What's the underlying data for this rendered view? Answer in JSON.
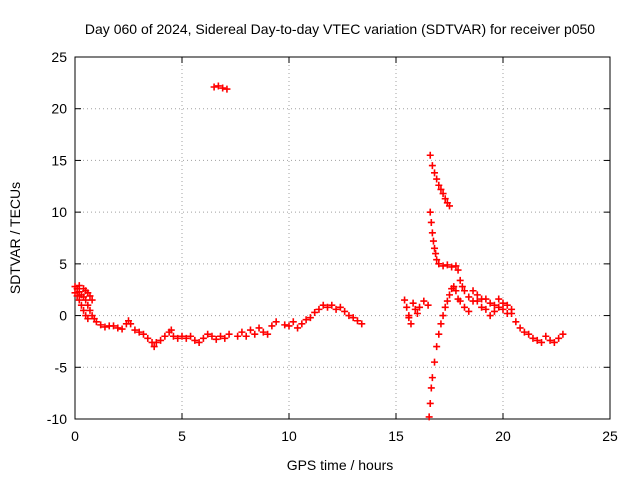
{
  "chart_data": {
    "type": "scatter",
    "title": "Day 060 of 2024, Sidereal Day-to-day VTEC variation (SDTVAR) for receiver p050",
    "xlabel": "GPS time / hours",
    "ylabel": "SDTVAR / TECUs",
    "xlim": [
      0,
      25
    ],
    "ylim": [
      -10,
      25
    ],
    "xticks": [
      0,
      5,
      10,
      15,
      20,
      25
    ],
    "yticks": [
      -10,
      -5,
      0,
      5,
      10,
      15,
      20,
      25
    ],
    "xtick_labels": [
      "0",
      "5",
      "10",
      "15",
      "20",
      "25"
    ],
    "ytick_labels": [
      "-10",
      "-5",
      "0",
      "5",
      "10",
      "15",
      "20",
      "25"
    ],
    "grid": true,
    "marker": "+",
    "color": "#ff0000",
    "series": [
      {
        "name": "SDTVAR",
        "points": [
          [
            0.0,
            2.8
          ],
          [
            0.1,
            2.6
          ],
          [
            0.2,
            2.3
          ],
          [
            0.3,
            2.0
          ],
          [
            0.4,
            1.8
          ],
          [
            0.5,
            1.5
          ],
          [
            0.6,
            1.0
          ],
          [
            0.7,
            0.5
          ],
          [
            0.8,
            0.0
          ],
          [
            0.9,
            -0.3
          ],
          [
            1.0,
            -0.6
          ],
          [
            1.2,
            -0.9
          ],
          [
            1.4,
            -1.1
          ],
          [
            0.0,
            2.2
          ],
          [
            0.1,
            1.9
          ],
          [
            0.2,
            1.5
          ],
          [
            0.3,
            1.0
          ],
          [
            0.4,
            0.5
          ],
          [
            0.5,
            0.0
          ],
          [
            0.6,
            -0.3
          ],
          [
            0.2,
            2.9
          ],
          [
            0.4,
            2.6
          ],
          [
            0.6,
            2.2
          ],
          [
            0.8,
            1.5
          ],
          [
            0.5,
            2.4
          ],
          [
            0.7,
            1.9
          ],
          [
            1.6,
            -1.0
          ],
          [
            1.8,
            -1.0
          ],
          [
            2.0,
            -1.2
          ],
          [
            2.2,
            -1.3
          ],
          [
            2.4,
            -0.8
          ],
          [
            2.5,
            -0.5
          ],
          [
            2.6,
            -0.8
          ],
          [
            2.8,
            -1.4
          ],
          [
            3.0,
            -1.6
          ],
          [
            3.2,
            -1.8
          ],
          [
            3.4,
            -2.2
          ],
          [
            3.6,
            -2.6
          ],
          [
            3.7,
            -3.0
          ],
          [
            3.8,
            -2.6
          ],
          [
            4.0,
            -2.4
          ],
          [
            4.2,
            -2.0
          ],
          [
            4.4,
            -1.6
          ],
          [
            4.5,
            -1.4
          ],
          [
            4.6,
            -2.0
          ],
          [
            4.8,
            -2.2
          ],
          [
            5.0,
            -2.0
          ],
          [
            5.2,
            -2.2
          ],
          [
            5.4,
            -2.0
          ],
          [
            5.6,
            -2.4
          ],
          [
            5.8,
            -2.6
          ],
          [
            6.0,
            -2.2
          ],
          [
            6.2,
            -1.8
          ],
          [
            6.4,
            -2.0
          ],
          [
            6.6,
            -2.3
          ],
          [
            6.8,
            -2.0
          ],
          [
            7.0,
            -2.2
          ],
          [
            7.2,
            -1.8
          ],
          [
            7.6,
            -2.0
          ],
          [
            7.8,
            -1.6
          ],
          [
            8.0,
            -2.0
          ],
          [
            8.2,
            -1.4
          ],
          [
            8.4,
            -1.8
          ],
          [
            8.6,
            -1.2
          ],
          [
            8.8,
            -1.6
          ],
          [
            9.0,
            -1.8
          ],
          [
            9.2,
            -1.0
          ],
          [
            9.4,
            -0.6
          ],
          [
            9.8,
            -0.9
          ],
          [
            10.0,
            -1.0
          ],
          [
            10.2,
            -0.6
          ],
          [
            10.4,
            -1.2
          ],
          [
            10.6,
            -0.8
          ],
          [
            10.8,
            -0.4
          ],
          [
            11.0,
            -0.2
          ],
          [
            11.2,
            0.3
          ],
          [
            11.4,
            0.6
          ],
          [
            11.6,
            1.0
          ],
          [
            11.8,
            0.8
          ],
          [
            12.0,
            1.0
          ],
          [
            12.2,
            0.6
          ],
          [
            12.4,
            0.8
          ],
          [
            12.6,
            0.4
          ],
          [
            12.8,
            0.0
          ],
          [
            13.0,
            -0.2
          ],
          [
            13.2,
            -0.5
          ],
          [
            13.4,
            -0.8
          ],
          [
            6.5,
            22.1
          ],
          [
            6.7,
            22.2
          ],
          [
            6.9,
            22.0
          ],
          [
            7.1,
            21.9
          ],
          [
            15.4,
            1.5
          ],
          [
            15.5,
            0.8
          ],
          [
            15.6,
            -0.2
          ],
          [
            15.7,
            -0.8
          ],
          [
            15.6,
            0.0
          ],
          [
            15.8,
            1.2
          ],
          [
            15.9,
            0.6
          ],
          [
            16.0,
            0.2
          ],
          [
            16.1,
            0.8
          ],
          [
            16.3,
            1.4
          ],
          [
            16.5,
            1.0
          ],
          [
            16.55,
            -9.8
          ],
          [
            16.6,
            -8.5
          ],
          [
            16.65,
            -7.0
          ],
          [
            16.7,
            -6.0
          ],
          [
            16.8,
            -4.5
          ],
          [
            16.9,
            -3.0
          ],
          [
            17.0,
            -1.8
          ],
          [
            17.1,
            -0.8
          ],
          [
            17.2,
            0.0
          ],
          [
            17.3,
            0.8
          ],
          [
            17.4,
            1.4
          ],
          [
            17.5,
            2.0
          ],
          [
            17.6,
            2.6
          ],
          [
            17.7,
            2.8
          ],
          [
            17.8,
            2.4
          ],
          [
            17.9,
            1.6
          ],
          [
            18.0,
            1.4
          ],
          [
            18.2,
            0.8
          ],
          [
            18.4,
            0.4
          ],
          [
            18.6,
            1.4
          ],
          [
            18.8,
            2.0
          ],
          [
            19.0,
            1.6
          ],
          [
            19.2,
            0.6
          ],
          [
            19.4,
            0.0
          ],
          [
            19.6,
            0.4
          ],
          [
            19.8,
            0.8
          ],
          [
            20.0,
            1.2
          ],
          [
            20.2,
            1.0
          ],
          [
            20.4,
            0.2
          ],
          [
            20.6,
            -0.6
          ],
          [
            20.8,
            -1.2
          ],
          [
            21.0,
            -1.6
          ],
          [
            21.2,
            -1.8
          ],
          [
            21.4,
            -2.2
          ],
          [
            21.6,
            -2.4
          ],
          [
            21.8,
            -2.6
          ],
          [
            22.0,
            -2.0
          ],
          [
            22.2,
            -2.4
          ],
          [
            22.4,
            -2.6
          ],
          [
            22.6,
            -2.2
          ],
          [
            22.8,
            -1.8
          ],
          [
            16.6,
            15.5
          ],
          [
            16.7,
            14.5
          ],
          [
            16.8,
            13.8
          ],
          [
            16.9,
            13.2
          ],
          [
            17.0,
            12.6
          ],
          [
            17.1,
            12.2
          ],
          [
            17.2,
            11.8
          ],
          [
            17.3,
            11.3
          ],
          [
            17.4,
            10.9
          ],
          [
            17.5,
            10.6
          ],
          [
            16.6,
            10.0
          ],
          [
            16.65,
            9.0
          ],
          [
            16.7,
            8.0
          ],
          [
            16.75,
            7.2
          ],
          [
            16.8,
            6.5
          ],
          [
            16.85,
            6.0
          ],
          [
            16.9,
            5.4
          ],
          [
            17.0,
            5.0
          ],
          [
            17.2,
            4.8
          ],
          [
            17.4,
            4.9
          ],
          [
            17.6,
            4.7
          ],
          [
            17.8,
            4.8
          ],
          [
            17.9,
            4.4
          ],
          [
            18.0,
            3.4
          ],
          [
            18.1,
            2.8
          ],
          [
            18.2,
            2.4
          ],
          [
            18.4,
            1.8
          ],
          [
            18.6,
            2.4
          ],
          [
            18.8,
            1.4
          ],
          [
            19.0,
            0.8
          ],
          [
            19.2,
            1.6
          ],
          [
            19.4,
            1.2
          ],
          [
            19.6,
            1.0
          ],
          [
            19.8,
            1.6
          ],
          [
            20.0,
            0.6
          ],
          [
            20.2,
            0.2
          ],
          [
            20.4,
            0.6
          ]
        ]
      }
    ]
  }
}
